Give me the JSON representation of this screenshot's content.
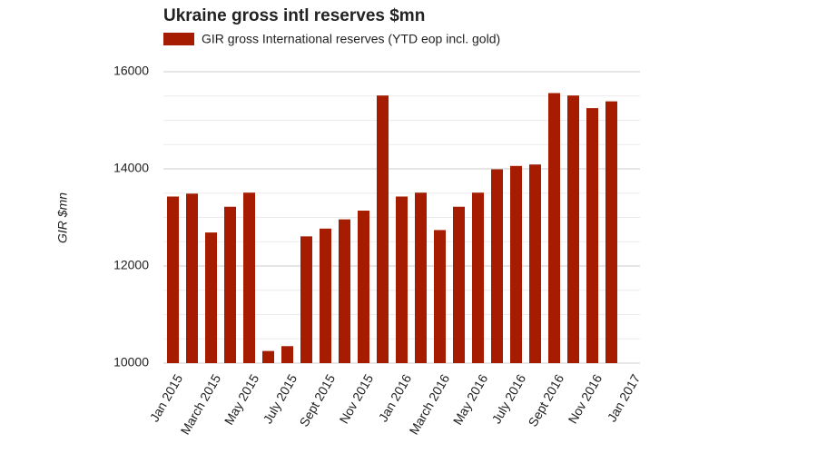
{
  "chart_data": {
    "type": "bar",
    "title": "Ukraine gross intl reserves $mn",
    "y_label": "GIR $mn",
    "categories": [
      "Jan 2015",
      null,
      "March 2015",
      null,
      "May 2015",
      null,
      "July 2015",
      null,
      "Sept 2015",
      null,
      "Nov 2015",
      null,
      "Jan 2016",
      null,
      "March 2016",
      null,
      "May 2016",
      null,
      "July 2016",
      null,
      "Sept 2016",
      null,
      "Nov 2016",
      null,
      "Jan 2017"
    ],
    "series": [
      {
        "name": "GIR gross International reserves (YTD eop incl. gold)",
        "color": "#a61c00",
        "values": [
          13430,
          13490,
          12690,
          13220,
          13510,
          10250,
          10350,
          12610,
          12770,
          12960,
          13140,
          15510,
          13430,
          13510,
          12740,
          13220,
          13510,
          13990,
          14060,
          14090,
          15560,
          15510,
          15250,
          15390,
          null
        ]
      }
    ],
    "ylim": [
      10000,
      16000
    ],
    "yticks": [
      10000,
      12000,
      14000,
      16000
    ],
    "minor_yticks": [
      10500,
      11000,
      11500,
      12500,
      13000,
      13500,
      14500,
      15000,
      15500
    ],
    "grid": true
  }
}
